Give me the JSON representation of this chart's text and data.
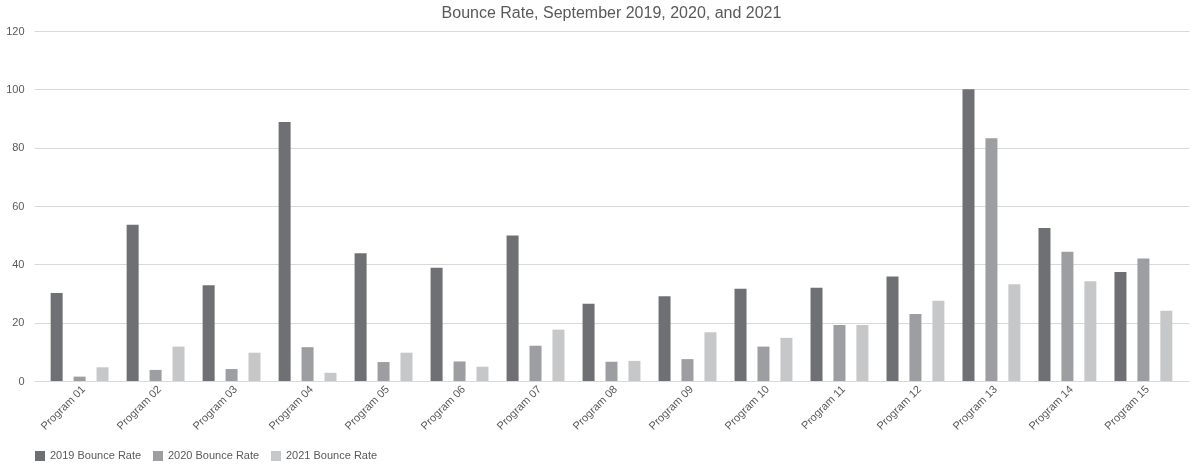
{
  "chart_data": {
    "type": "bar",
    "title": "Bounce Rate, September 2019, 2020, and 2021",
    "categories": [
      "Program 01",
      "Program 02",
      "Program 03",
      "Program 04",
      "Program 05",
      "Program 06",
      "Program 07",
      "Program 08",
      "Program 09",
      "Program 10",
      "Program 11",
      "Program 12",
      "Program 13",
      "Program 14",
      "Program 15"
    ],
    "series": [
      {
        "name": "2019 Bounce Rate",
        "color": "#6f7074",
        "values": [
          30.2,
          53.6,
          32.8,
          88.8,
          43.8,
          38.8,
          49.9,
          26.5,
          29.1,
          31.6,
          32.0,
          35.8,
          100,
          52.5,
          37.4
        ]
      },
      {
        "name": "2020 Bounce Rate",
        "color": "#9d9ea2",
        "values": [
          1.5,
          3.8,
          4.1,
          11.6,
          6.5,
          6.7,
          12.1,
          6.6,
          7.5,
          11.8,
          19.2,
          23.0,
          83.2,
          44.3,
          42.0
        ]
      },
      {
        "name": "2021 Bounce Rate",
        "color": "#c6c7c9",
        "values": [
          4.7,
          11.8,
          9.7,
          2.8,
          9.7,
          4.9,
          17.6,
          6.9,
          16.7,
          14.8,
          19.2,
          27.5,
          33.2,
          34.2,
          24.1
        ]
      }
    ],
    "ylim": [
      0,
      120
    ],
    "yticks": [
      0,
      20,
      40,
      60,
      80,
      100,
      120
    ],
    "grid": "y",
    "legend": "bottom"
  }
}
